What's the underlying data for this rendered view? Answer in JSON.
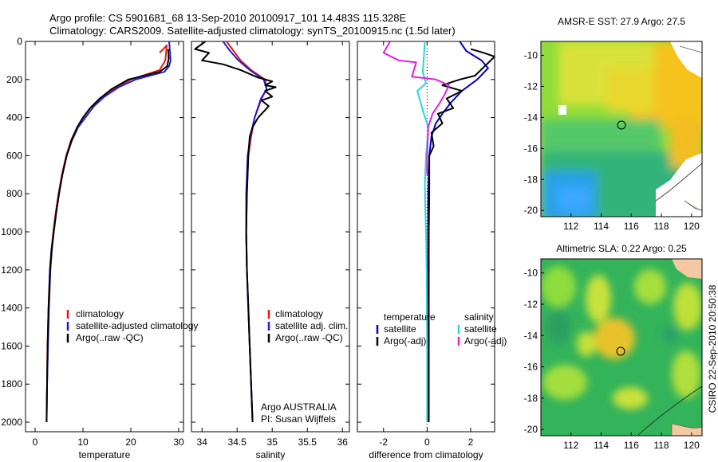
{
  "header": {
    "line1": "Argo profile: CS 5901681_68 13-Sep-2010 20100917_101 14.483S 115.328E",
    "line2": "Climatology: CARS2009. Satellite-adjusted climatology: synTS_20100915.nc (1.5d later)"
  },
  "side_label": "CSIRO 22-Sep-2010 20:50:38",
  "colors": {
    "climatology": "#e8190f",
    "satellite": "#1f1fd6",
    "argo": "#000000",
    "temp_diff": "#0000cc",
    "sal_sat": "#22d8e0",
    "sal_argo": "#e020e0"
  },
  "chart_data": [
    {
      "type": "line",
      "id": "temperature",
      "xlabel": "temperature",
      "ylabel": "",
      "xlim": [
        -2,
        31
      ],
      "ylim": [
        2050,
        0
      ],
      "y_reversed": true,
      "xticks": [
        0,
        10,
        20,
        30
      ],
      "yticks": [
        0,
        200,
        400,
        600,
        800,
        1000,
        1200,
        1400,
        1600,
        1800,
        2000
      ],
      "legend": [
        "climatology",
        "satellite-adjusted climatology",
        "Argo(..raw -QC)"
      ],
      "series": [
        {
          "name": "climatology",
          "color": "#e8190f",
          "x": [
            26,
            26.8,
            27.5,
            27.2,
            26,
            20,
            16.5,
            13.5,
            11.5,
            10,
            8.8,
            7.5,
            6.5,
            5.6,
            4.9,
            4.3,
            3.8,
            3.4,
            3.1,
            2.8,
            2.6,
            2.5,
            2.4
          ],
          "y": [
            60,
            40,
            20,
            100,
            150,
            200,
            250,
            300,
            350,
            400,
            450,
            520,
            600,
            700,
            800,
            900,
            1000,
            1100,
            1200,
            1400,
            1600,
            1800,
            2000
          ]
        },
        {
          "name": "satellite-adjusted climatology",
          "color": "#1f1fd6",
          "x": [
            28,
            28.2,
            28.3,
            28,
            27,
            21,
            17.5,
            14.5,
            12.3,
            10.5,
            9,
            7.7,
            6.6,
            5.7,
            5,
            4.4,
            3.9,
            3.5,
            3.2,
            2.9,
            2.7,
            2.5,
            2.4
          ],
          "y": [
            0,
            60,
            100,
            130,
            160,
            200,
            240,
            290,
            340,
            400,
            450,
            520,
            600,
            700,
            800,
            900,
            1000,
            1100,
            1200,
            1400,
            1600,
            1800,
            2000
          ]
        },
        {
          "name": "Argo(..raw -QC)",
          "color": "#000000",
          "x": [
            27.8,
            27.9,
            27.6,
            26,
            19.5,
            16,
            13.5,
            11.5,
            10,
            8.8,
            7.6,
            6.6,
            5.7,
            5,
            4.4,
            3.9,
            3.4,
            3.1,
            2.8,
            2.6,
            2.5,
            2.4
          ],
          "y": [
            40,
            90,
            130,
            160,
            200,
            250,
            300,
            350,
            400,
            450,
            520,
            600,
            700,
            800,
            900,
            1000,
            1100,
            1200,
            1400,
            1600,
            1800,
            2000
          ]
        }
      ]
    },
    {
      "type": "line",
      "id": "salinity",
      "xlabel": "salinity",
      "ylabel": "",
      "xlim": [
        33.85,
        36.1
      ],
      "ylim": [
        2050,
        0
      ],
      "y_reversed": true,
      "xticks": [
        34,
        34.5,
        35,
        35.5,
        36
      ],
      "legend": [
        "climatology",
        "satellite adj. clim.",
        "Argo(..raw -QC)"
      ],
      "annotation": [
        "Argo AUSTRALIA",
        "PI: Susan Wijffels"
      ],
      "series": [
        {
          "name": "climatology",
          "color": "#e8190f",
          "x": [
            34.35,
            34.45,
            34.55,
            34.7,
            34.9,
            34.92,
            34.85,
            34.75,
            34.7,
            34.66,
            34.64,
            34.63,
            34.64,
            34.66,
            34.68,
            34.7,
            34.72
          ],
          "y": [
            0,
            50,
            100,
            150,
            200,
            250,
            300,
            400,
            500,
            600,
            800,
            1000,
            1200,
            1400,
            1600,
            1800,
            2000
          ]
        },
        {
          "name": "satellite adj. clim.",
          "color": "#1f1fd6",
          "x": [
            34.3,
            34.4,
            34.52,
            34.68,
            34.88,
            34.92,
            34.84,
            34.75,
            34.69,
            34.65,
            34.63,
            34.63,
            34.64,
            34.66,
            34.68,
            34.7,
            34.72
          ],
          "y": [
            0,
            50,
            100,
            150,
            200,
            250,
            300,
            400,
            500,
            600,
            800,
            1000,
            1200,
            1400,
            1600,
            1800,
            2000
          ]
        },
        {
          "name": "Argo(..raw -QC)",
          "color": "#000000",
          "x": [
            34.05,
            33.9,
            34.1,
            34.0,
            34.3,
            34.55,
            34.8,
            35.0,
            34.9,
            35.05,
            34.9,
            35.0,
            34.85,
            34.95,
            34.8,
            34.72,
            34.68,
            34.66,
            34.64,
            34.63,
            34.64,
            34.66,
            34.68,
            34.7,
            34.72
          ],
          "y": [
            0,
            40,
            60,
            100,
            120,
            150,
            190,
            210,
            230,
            240,
            260,
            290,
            310,
            340,
            400,
            450,
            500,
            600,
            800,
            1000,
            1200,
            1400,
            1600,
            1800,
            2000
          ]
        }
      ]
    },
    {
      "type": "line",
      "id": "difference",
      "xlabel": "difference from climatology",
      "ylabel": "",
      "xlim": [
        -3.2,
        3.1
      ],
      "ylim": [
        2050,
        0
      ],
      "y_reversed": true,
      "xticks": [
        -2,
        0,
        2
      ],
      "legend_left": [
        "temperature",
        "satellite",
        "Argo(-adj)"
      ],
      "legend_right": [
        "salinity",
        "satellite",
        "Argo(-adj)"
      ],
      "series": [
        {
          "name": "temperature satellite",
          "color": "#0000cc",
          "x": [
            1.5,
            1.8,
            2.5,
            2.8,
            2.3,
            1.6,
            1.1,
            0.7,
            0.4,
            0.2,
            0.1,
            0.05,
            0.05,
            0.05,
            0.05,
            0.05,
            0.05
          ],
          "y": [
            0,
            50,
            100,
            140,
            200,
            260,
            320,
            380,
            430,
            500,
            600,
            800,
            1000,
            1200,
            1500,
            1800,
            2000
          ]
        },
        {
          "name": "temperature Argo(-adj)",
          "color": "#000000",
          "x": [
            2.0,
            2.6,
            3.1,
            2.2,
            1.5,
            0.7,
            1.6,
            0.9,
            1.2,
            0.5,
            0.7,
            0.2,
            0.3,
            0.1,
            0.1,
            0.08,
            0.08,
            0.08,
            0.08
          ],
          "y": [
            40,
            60,
            80,
            180,
            200,
            230,
            260,
            300,
            350,
            380,
            430,
            480,
            550,
            600,
            800,
            1000,
            1400,
            1800,
            2000
          ]
        },
        {
          "name": "salinity satellite",
          "color": "#22d8e0",
          "x": [
            -0.1,
            -0.15,
            -0.2,
            -0.05,
            -0.45,
            -0.3,
            -0.15,
            0.0,
            0.05,
            -0.05,
            -0.1,
            -0.08,
            -0.05,
            -0.02,
            0.0,
            0.0
          ],
          "y": [
            0,
            80,
            160,
            220,
            260,
            320,
            380,
            430,
            470,
            600,
            750,
            900,
            1000,
            1200,
            1600,
            2000
          ]
        },
        {
          "name": "salinity Argo(-adj)",
          "color": "#e020e0",
          "x": [
            -1.7,
            -2.0,
            -1.3,
            -0.5,
            -0.7,
            0.4,
            1.0,
            0.8,
            0.6,
            0.25,
            0.05,
            0.0,
            0.0
          ],
          "y": [
            0,
            60,
            100,
            110,
            185,
            200,
            230,
            280,
            320,
            380,
            450,
            600,
            700
          ]
        }
      ]
    },
    {
      "type": "heatmap",
      "id": "sst-map",
      "title": "AMSR-E SST: 27.9 Argo: 27.5",
      "xticks": [
        112,
        114,
        116,
        118,
        120
      ],
      "yticks": [
        -10,
        -12,
        -14,
        -16,
        -18,
        -20
      ],
      "xlim": [
        110,
        120.7
      ],
      "ylim": [
        -20.4,
        -9.1
      ],
      "marker": {
        "lon": 115.328,
        "lat": -14.483
      }
    },
    {
      "type": "heatmap",
      "id": "sla-map",
      "title": "Altimetric SLA: 0.22 Argo: 0.25",
      "xticks": [
        112,
        114,
        116,
        118,
        120
      ],
      "yticks": [
        -10,
        -12,
        -14,
        -16,
        -18,
        -20
      ],
      "xlim": [
        110,
        120.7
      ],
      "ylim": [
        -20.4,
        -9.1
      ],
      "marker": {
        "lon": 115.328,
        "lat": -14.483
      }
    }
  ]
}
